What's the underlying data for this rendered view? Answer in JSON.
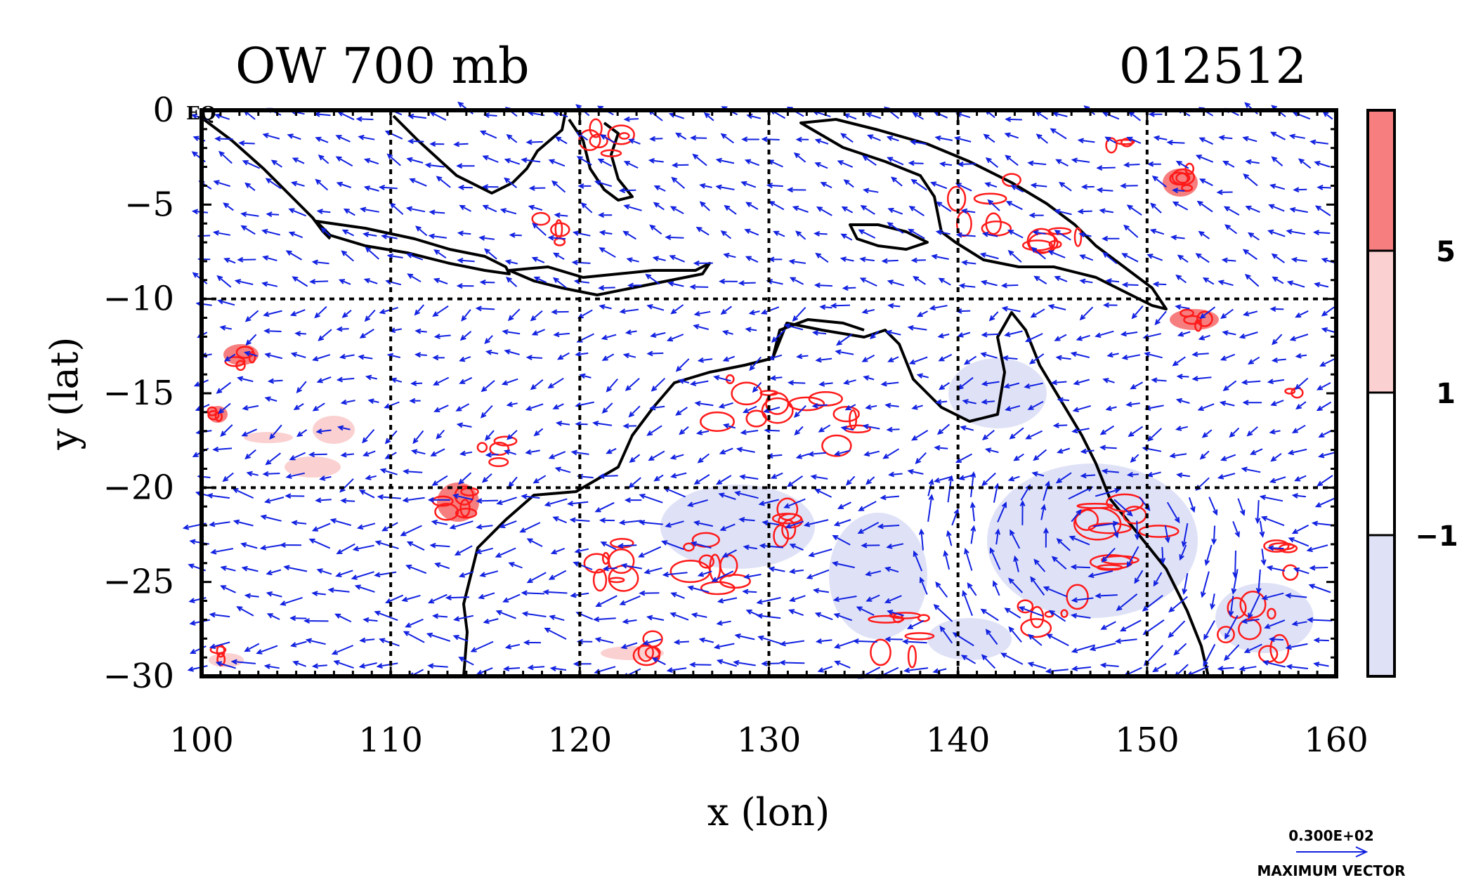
{
  "title_left": "OW 700 mb",
  "title_right": "012512",
  "corner_label": "EQ",
  "chart_data": {
    "type": "map",
    "xlabel": "x (lon)",
    "ylabel": "y (lat)",
    "xlim": [
      100,
      160
    ],
    "ylim": [
      -30,
      0
    ],
    "xticks": [
      100,
      110,
      120,
      130,
      140,
      150,
      160
    ],
    "yticks": [
      0,
      -5,
      -10,
      -15,
      -20,
      -25,
      -30
    ],
    "ytick_labels": [
      "0",
      "−5",
      "−10",
      "−15",
      "−20",
      "−25",
      "−30"
    ],
    "grid_lon": [
      110,
      120,
      130,
      140,
      150
    ],
    "grid_lat": [
      -10,
      -20
    ],
    "colorbar": {
      "labels": [
        "5",
        "1",
        "−1"
      ],
      "levels": [
        5,
        1,
        -1
      ],
      "colors": [
        "#f67e7e",
        "#fbd0d0",
        "#ffffff",
        "#dfe2f7"
      ]
    },
    "vector_key": {
      "value_label": "0.300E+02",
      "caption": "MAXIMUM VECTOR"
    },
    "colors": {
      "contour_red": "#ff1a1a",
      "vector_blue": "#1020e0",
      "coast": "#000000"
    }
  }
}
